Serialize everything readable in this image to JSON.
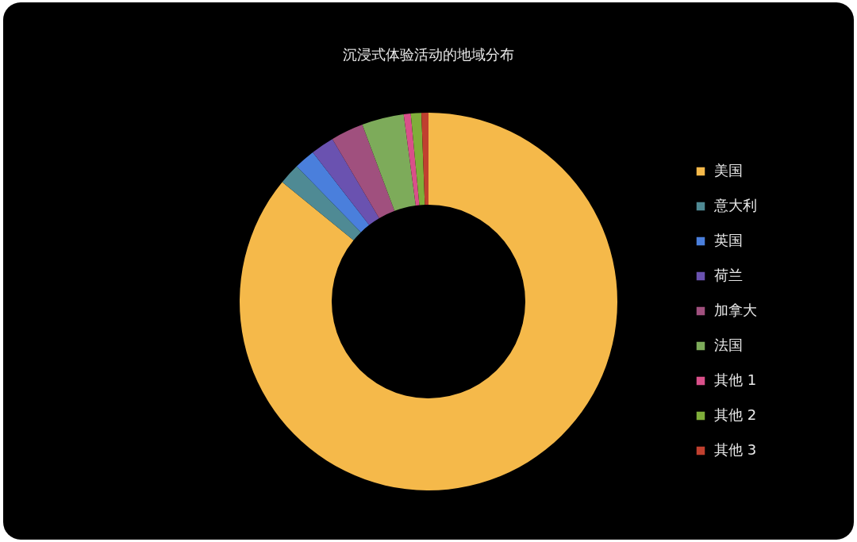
{
  "chart_data": {
    "type": "donut",
    "title": "沉浸式体验活动的地域分布",
    "categories": [
      "美国",
      "意大利",
      "英国",
      "荷兰",
      "加拿大",
      "法国",
      "其他 1",
      "其他 2",
      "其他 3"
    ],
    "values": [
      85.9,
      1.8,
      1.8,
      2.0,
      2.8,
      3.6,
      0.6,
      0.9,
      0.6
    ],
    "colors": [
      "#f5b94a",
      "#4f8a94",
      "#4a7fdc",
      "#6a52b0",
      "#a0507e",
      "#7dab5a",
      "#d9508a",
      "#7fae3a",
      "#c0402f"
    ],
    "legend": "right"
  }
}
